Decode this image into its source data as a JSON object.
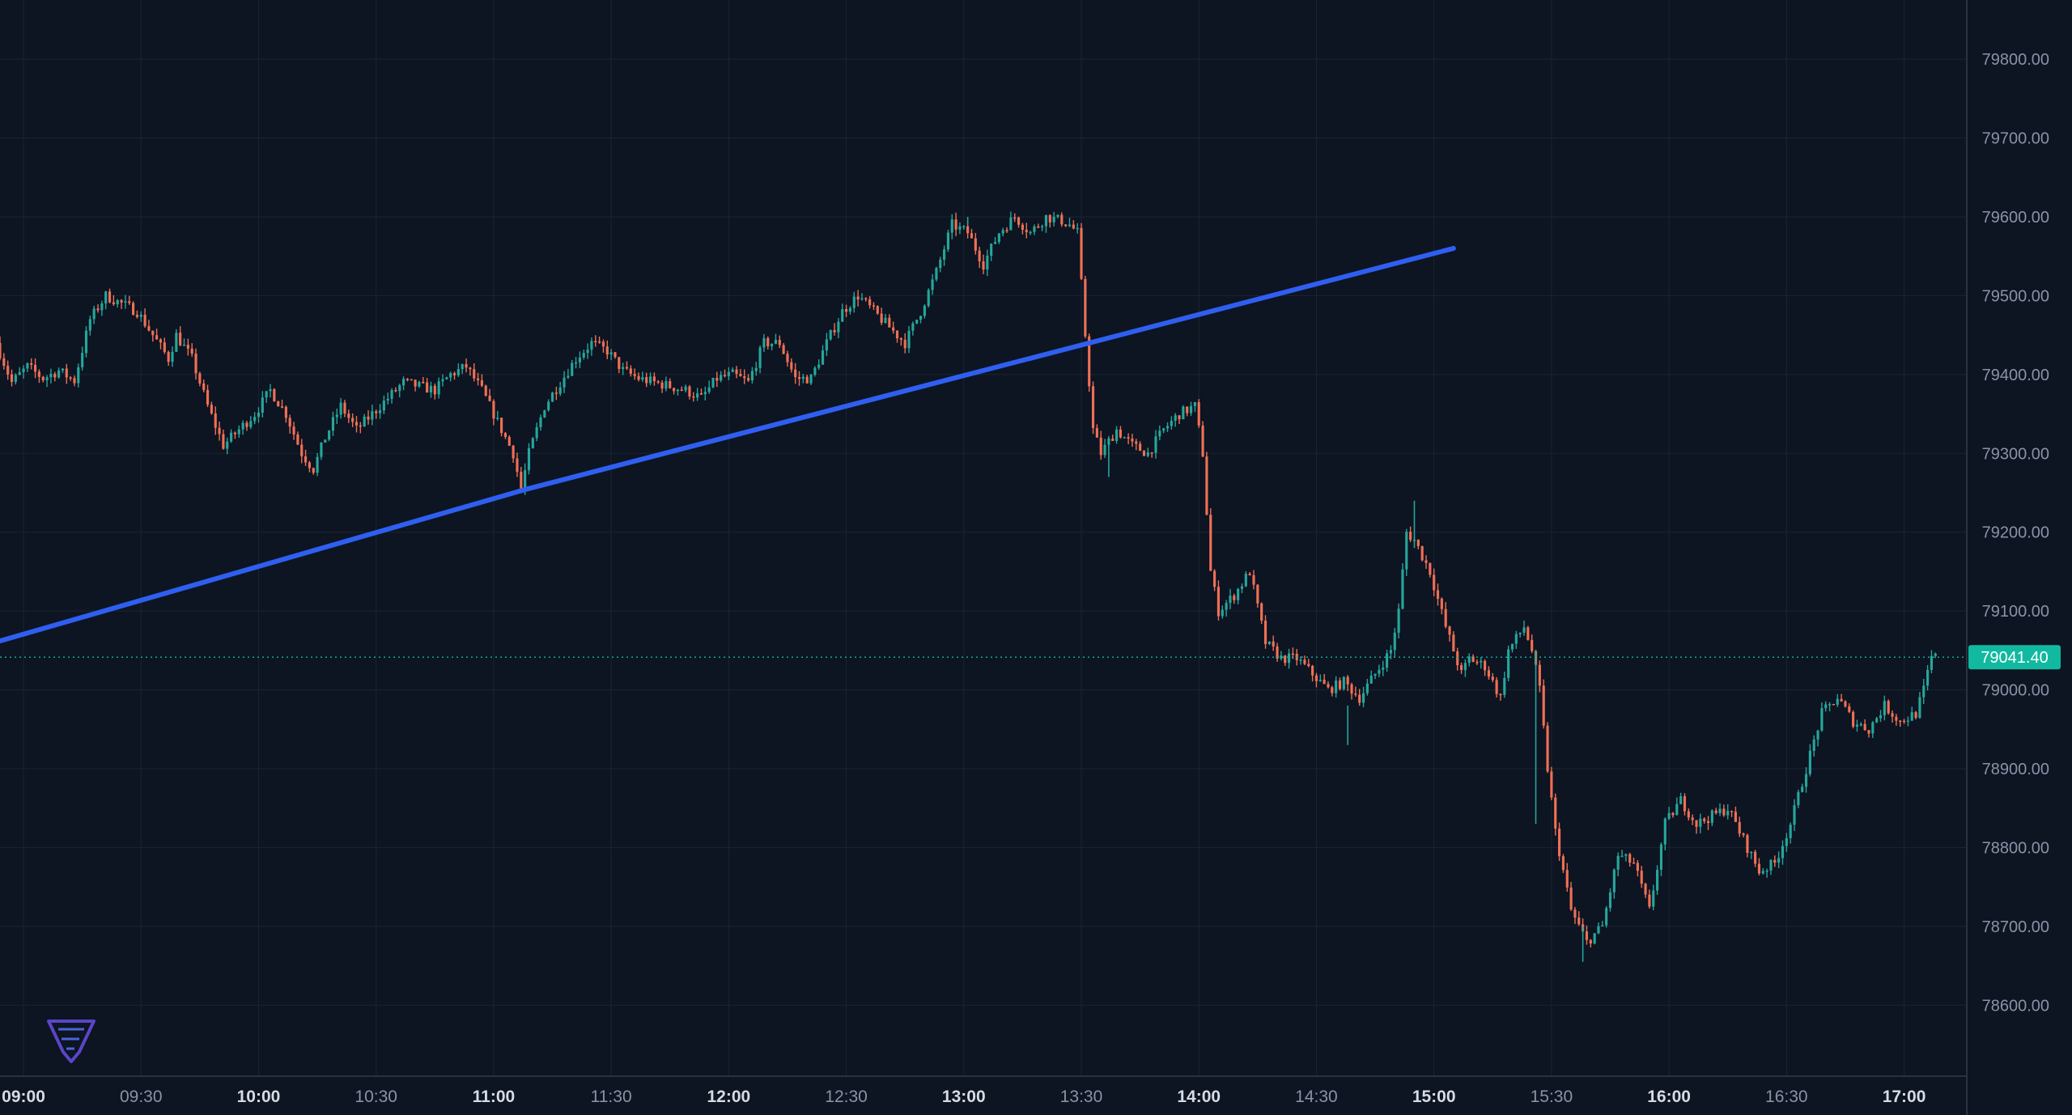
{
  "chart_data": {
    "type": "candlestick",
    "x_axis": {
      "tick_labels": [
        "09:00",
        "09:30",
        "10:00",
        "10:30",
        "11:00",
        "11:30",
        "12:00",
        "12:30",
        "13:00",
        "13:30",
        "14:00",
        "14:30",
        "15:00",
        "15:30",
        "16:00",
        "16:30",
        "17:00"
      ],
      "bold_labels": [
        "09:00",
        "10:00",
        "11:00",
        "12:00",
        "13:00",
        "14:00",
        "15:00",
        "16:00",
        "17:00"
      ],
      "range": [
        "08:54",
        "17:16"
      ]
    },
    "y_axis": {
      "position": "right",
      "tick_values": [
        78600,
        78700,
        78800,
        78900,
        79000,
        79100,
        79200,
        79300,
        79400,
        79500,
        79600,
        79700,
        79800
      ],
      "tick_labels": [
        "78600.00",
        "78700.00",
        "78800.00",
        "78900.00",
        "79000.00",
        "79100.00",
        "79200.00",
        "79300.00",
        "79400.00",
        "79500.00",
        "79600.00",
        "79700.00",
        "79800.00"
      ],
      "range": [
        78510,
        79875
      ]
    },
    "grid": true,
    "colors": {
      "background": "#0d1422",
      "grid": "#1c2433",
      "up": "#26a69a",
      "down": "#ef7055",
      "trendline": "#2f5ff0",
      "axis_text": "#8a93a6",
      "axis_text_bold": "#d6dbe4",
      "price_badge": "#10b99f"
    },
    "current_price": {
      "value": 79041.4,
      "label": "79041.40"
    },
    "trendline": {
      "points": [
        {
          "time": "08:54",
          "price": 79062
        },
        {
          "time": "11:08",
          "price": 79254
        },
        {
          "time": "15:05",
          "price": 79560
        }
      ]
    },
    "price_path": [
      [
        "08:54",
        79440
      ],
      [
        "08:58",
        79390
      ],
      [
        "09:02",
        79410
      ],
      [
        "09:06",
        79395
      ],
      [
        "09:10",
        79405
      ],
      [
        "09:14",
        79392
      ],
      [
        "09:18",
        79470
      ],
      [
        "09:22",
        79500
      ],
      [
        "09:26",
        79490
      ],
      [
        "09:30",
        79480
      ],
      [
        "09:34",
        79450
      ],
      [
        "09:38",
        79420
      ],
      [
        "09:40",
        79450
      ],
      [
        "09:44",
        79420
      ],
      [
        "09:48",
        79360
      ],
      [
        "09:52",
        79310
      ],
      [
        "09:56",
        79330
      ],
      [
        "10:00",
        79350
      ],
      [
        "10:04",
        79380
      ],
      [
        "10:08",
        79350
      ],
      [
        "10:12",
        79300
      ],
      [
        "10:15",
        79280
      ],
      [
        "10:18",
        79320
      ],
      [
        "10:22",
        79360
      ],
      [
        "10:26",
        79330
      ],
      [
        "10:30",
        79350
      ],
      [
        "10:34",
        79370
      ],
      [
        "10:38",
        79390
      ],
      [
        "10:42",
        79385
      ],
      [
        "10:46",
        79380
      ],
      [
        "10:50",
        79400
      ],
      [
        "10:54",
        79410
      ],
      [
        "10:58",
        79380
      ],
      [
        "11:00",
        79360
      ],
      [
        "11:02",
        79340
      ],
      [
        "11:06",
        79300
      ],
      [
        "11:08",
        79254
      ],
      [
        "11:10",
        79300
      ],
      [
        "11:14",
        79360
      ],
      [
        "11:18",
        79390
      ],
      [
        "11:22",
        79420
      ],
      [
        "11:26",
        79440
      ],
      [
        "11:30",
        79430
      ],
      [
        "11:34",
        79405
      ],
      [
        "11:38",
        79395
      ],
      [
        "11:42",
        79390
      ],
      [
        "11:46",
        79385
      ],
      [
        "11:50",
        79380
      ],
      [
        "11:54",
        79370
      ],
      [
        "11:58",
        79395
      ],
      [
        "12:02",
        79400
      ],
      [
        "12:06",
        79390
      ],
      [
        "12:10",
        79440
      ],
      [
        "12:14",
        79440
      ],
      [
        "12:18",
        79395
      ],
      [
        "12:22",
        79395
      ],
      [
        "12:26",
        79440
      ],
      [
        "12:30",
        79480
      ],
      [
        "12:34",
        79500
      ],
      [
        "12:38",
        79480
      ],
      [
        "12:42",
        79460
      ],
      [
        "12:46",
        79440
      ],
      [
        "12:50",
        79480
      ],
      [
        "12:54",
        79530
      ],
      [
        "12:58",
        79590
      ],
      [
        "13:02",
        79580
      ],
      [
        "13:06",
        79540
      ],
      [
        "13:10",
        79580
      ],
      [
        "13:14",
        79600
      ],
      [
        "13:18",
        79580
      ],
      [
        "13:22",
        79600
      ],
      [
        "13:26",
        79595
      ],
      [
        "13:28",
        79590
      ],
      [
        "13:30",
        79580
      ],
      [
        "13:32",
        79450
      ],
      [
        "13:34",
        79330
      ],
      [
        "13:36",
        79300
      ],
      [
        "13:40",
        79330
      ],
      [
        "13:44",
        79310
      ],
      [
        "13:48",
        79300
      ],
      [
        "13:52",
        79330
      ],
      [
        "13:56",
        79350
      ],
      [
        "14:00",
        79360
      ],
      [
        "14:02",
        79300
      ],
      [
        "14:04",
        79150
      ],
      [
        "14:06",
        79100
      ],
      [
        "14:10",
        79120
      ],
      [
        "14:14",
        79150
      ],
      [
        "14:18",
        79060
      ],
      [
        "14:22",
        79040
      ],
      [
        "14:26",
        79040
      ],
      [
        "14:30",
        79020
      ],
      [
        "14:34",
        79000
      ],
      [
        "14:38",
        79010
      ],
      [
        "14:42",
        78990
      ],
      [
        "14:46",
        79020
      ],
      [
        "14:50",
        79050
      ],
      [
        "14:52",
        79100
      ],
      [
        "14:54",
        79200
      ],
      [
        "14:56",
        79190
      ],
      [
        "15:00",
        79150
      ],
      [
        "15:04",
        79080
      ],
      [
        "15:08",
        79020
      ],
      [
        "15:10",
        79040
      ],
      [
        "15:14",
        79030
      ],
      [
        "15:18",
        78990
      ],
      [
        "15:20",
        79050
      ],
      [
        "15:24",
        79080
      ],
      [
        "15:26",
        79050
      ],
      [
        "15:28",
        79000
      ],
      [
        "15:30",
        78900
      ],
      [
        "15:32",
        78820
      ],
      [
        "15:36",
        78720
      ],
      [
        "15:40",
        78680
      ],
      [
        "15:44",
        78700
      ],
      [
        "15:48",
        78790
      ],
      [
        "15:52",
        78780
      ],
      [
        "15:56",
        78720
      ],
      [
        "16:00",
        78830
      ],
      [
        "16:04",
        78860
      ],
      [
        "16:08",
        78830
      ],
      [
        "16:12",
        78840
      ],
      [
        "16:16",
        78850
      ],
      [
        "16:20",
        78810
      ],
      [
        "16:24",
        78770
      ],
      [
        "16:28",
        78780
      ],
      [
        "16:32",
        78830
      ],
      [
        "16:36",
        78900
      ],
      [
        "16:40",
        78970
      ],
      [
        "16:44",
        78990
      ],
      [
        "16:48",
        78960
      ],
      [
        "16:52",
        78950
      ],
      [
        "16:56",
        78980
      ],
      [
        "17:00",
        78960
      ],
      [
        "17:04",
        78970
      ],
      [
        "17:06",
        79000
      ],
      [
        "17:08",
        79041
      ]
    ],
    "spikes": [
      [
        "13:37",
        79320,
        79270
      ],
      [
        "14:38",
        78980,
        78930
      ],
      [
        "14:55",
        79240,
        79180
      ],
      [
        "15:26",
        79050,
        78830
      ],
      [
        "15:38",
        78700,
        78655
      ],
      [
        "13:01",
        79600,
        79590
      ]
    ]
  }
}
